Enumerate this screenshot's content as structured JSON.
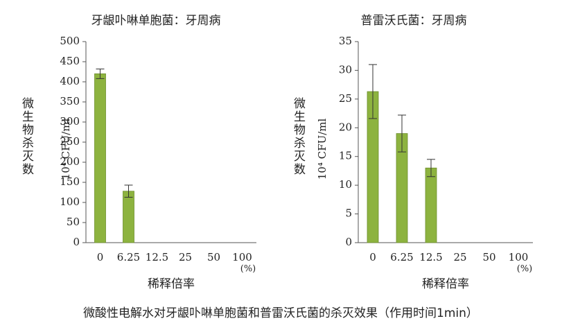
{
  "chart_data": [
    {
      "type": "bar",
      "title": "牙龈卟啉单胞菌：牙周病",
      "y_label": "微生物杀灭数",
      "y_unit": "10⁴ CFU/ml",
      "x_label": "稀释倍率",
      "x_unit": "(%)",
      "categories": [
        "0",
        "6.25",
        "12.5",
        "25",
        "50",
        "100"
      ],
      "values": [
        420,
        128,
        0,
        0,
        0,
        0
      ],
      "errors": [
        12,
        15,
        0,
        0,
        0,
        0
      ],
      "color": "#8db33f",
      "ylim": [
        0,
        500
      ],
      "yticks": [
        0,
        50,
        100,
        150,
        200,
        250,
        300,
        350,
        400,
        450,
        500
      ]
    },
    {
      "type": "bar",
      "title": "普雷沃氏菌：牙周病",
      "y_label": "微生物杀灭数",
      "y_unit": "10⁴ CFU/ml",
      "x_label": "稀释倍率",
      "x_unit": "(%)",
      "categories": [
        "0",
        "6.25",
        "12.5",
        "25",
        "50",
        "100"
      ],
      "values": [
        26.3,
        19,
        13,
        0,
        0,
        0
      ],
      "errors": [
        4.7,
        3.2,
        1.5,
        0,
        0,
        0
      ],
      "color": "#8db33f",
      "ylim": [
        0,
        35
      ],
      "yticks": [
        0,
        5,
        10,
        15,
        20,
        25,
        30,
        35
      ]
    }
  ],
  "caption": "微酸性电解水对牙龈卟啉单胞菌和普雷沃氏菌的杀灭效果（作用时间1min）"
}
